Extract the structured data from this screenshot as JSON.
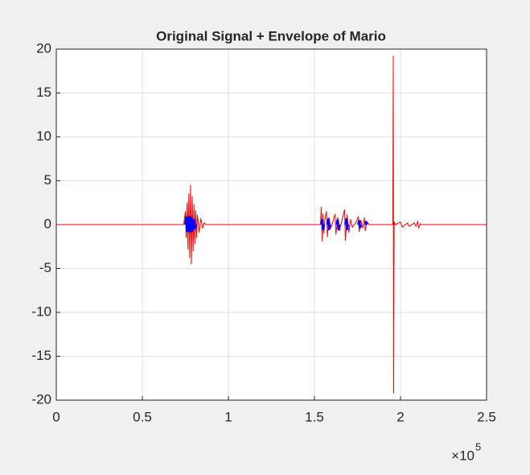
{
  "chart_data": {
    "type": "line",
    "title": "Original Signal + Envelope of Mario",
    "xlim": [
      0,
      250000
    ],
    "ylim": [
      -20,
      20
    ],
    "xticks": [
      0,
      {
        "value": 50000,
        "label": "0.5"
      },
      {
        "value": 100000,
        "label": "1"
      },
      {
        "value": 150000,
        "label": "1.5"
      },
      {
        "value": 200000,
        "label": "2"
      },
      {
        "value": 250000,
        "label": "2.5"
      }
    ],
    "yticks": [
      -20,
      -15,
      -10,
      -5,
      0,
      5,
      10,
      15,
      20
    ],
    "x_multiplier": {
      "base": "×10",
      "exponent": "5"
    },
    "grid": true,
    "series": [
      {
        "color": "#ff0000",
        "width": 1,
        "x": [
          0,
          74000,
          75000,
          75500,
          76000,
          76500,
          77000,
          77500,
          78000,
          78500,
          79000,
          79500,
          80000,
          80500,
          81000,
          81500,
          82000,
          83000,
          84000,
          85000,
          86000,
          87000,
          153500,
          154000,
          154500,
          155000,
          155500,
          156000,
          157000,
          157500,
          158500,
          159500,
          160500,
          162000,
          162500,
          163500,
          164500,
          166000,
          167500,
          168000,
          169000,
          170000,
          171000,
          172000,
          174000,
          175500,
          176000,
          177000,
          178000,
          179000,
          179500,
          180500,
          182000,
          195500,
          195800,
          196000,
          196300,
          197000,
          200000,
          201000,
          204000,
          205000,
          208000,
          209000,
          210000,
          210500,
          211500,
          212000,
          250000
        ],
        "values": [
          0,
          0,
          1.5,
          -1.5,
          2.5,
          -2.8,
          3.5,
          -3.8,
          4.5,
          -4.5,
          3.2,
          -3.0,
          2.3,
          -2.2,
          1.6,
          -1.5,
          1.1,
          -0.9,
          0.7,
          -0.4,
          0.2,
          0,
          0,
          2.0,
          -1.9,
          1.2,
          -1.0,
          0.5,
          1.5,
          -1.4,
          0.8,
          -0.4,
          0.2,
          1.2,
          -1.1,
          0.8,
          -0.7,
          0.5,
          1.7,
          -1.8,
          1.1,
          -0.9,
          0.6,
          -0.3,
          0.2,
          0.9,
          -0.8,
          0.5,
          -0.4,
          0.8,
          -0.7,
          0.3,
          0,
          0,
          19.2,
          -19.2,
          0.3,
          0,
          0.3,
          -0.3,
          0.2,
          -0.2,
          0.2,
          -0.2,
          0.4,
          -0.4,
          0.1,
          0,
          0
        ]
      },
      {
        "color": "#0000ff",
        "width": 3,
        "x": [
          75000,
          75500,
          76000,
          77000,
          77500,
          78500,
          79000,
          80000,
          80500,
          81000,
          null,
          154000,
          154500,
          155000,
          155500,
          null,
          157500,
          158000,
          158500,
          159000,
          null,
          163000,
          163500,
          164000,
          164500,
          null,
          168000,
          168500,
          169000,
          169500,
          null,
          175500,
          176000,
          176500,
          177000,
          null,
          179500,
          180000,
          180500
        ],
        "values": [
          0,
          0.8,
          -0.7,
          0.9,
          -0.8,
          0.8,
          -0.7,
          0.5,
          -0.4,
          0,
          null,
          0,
          0.5,
          -0.5,
          0,
          null,
          0,
          0.6,
          -0.5,
          0,
          null,
          0,
          0.5,
          -0.5,
          0,
          null,
          0,
          0.6,
          -0.5,
          0,
          null,
          0,
          0.4,
          -0.3,
          0,
          null,
          0,
          0.3,
          0
        ]
      }
    ]
  }
}
